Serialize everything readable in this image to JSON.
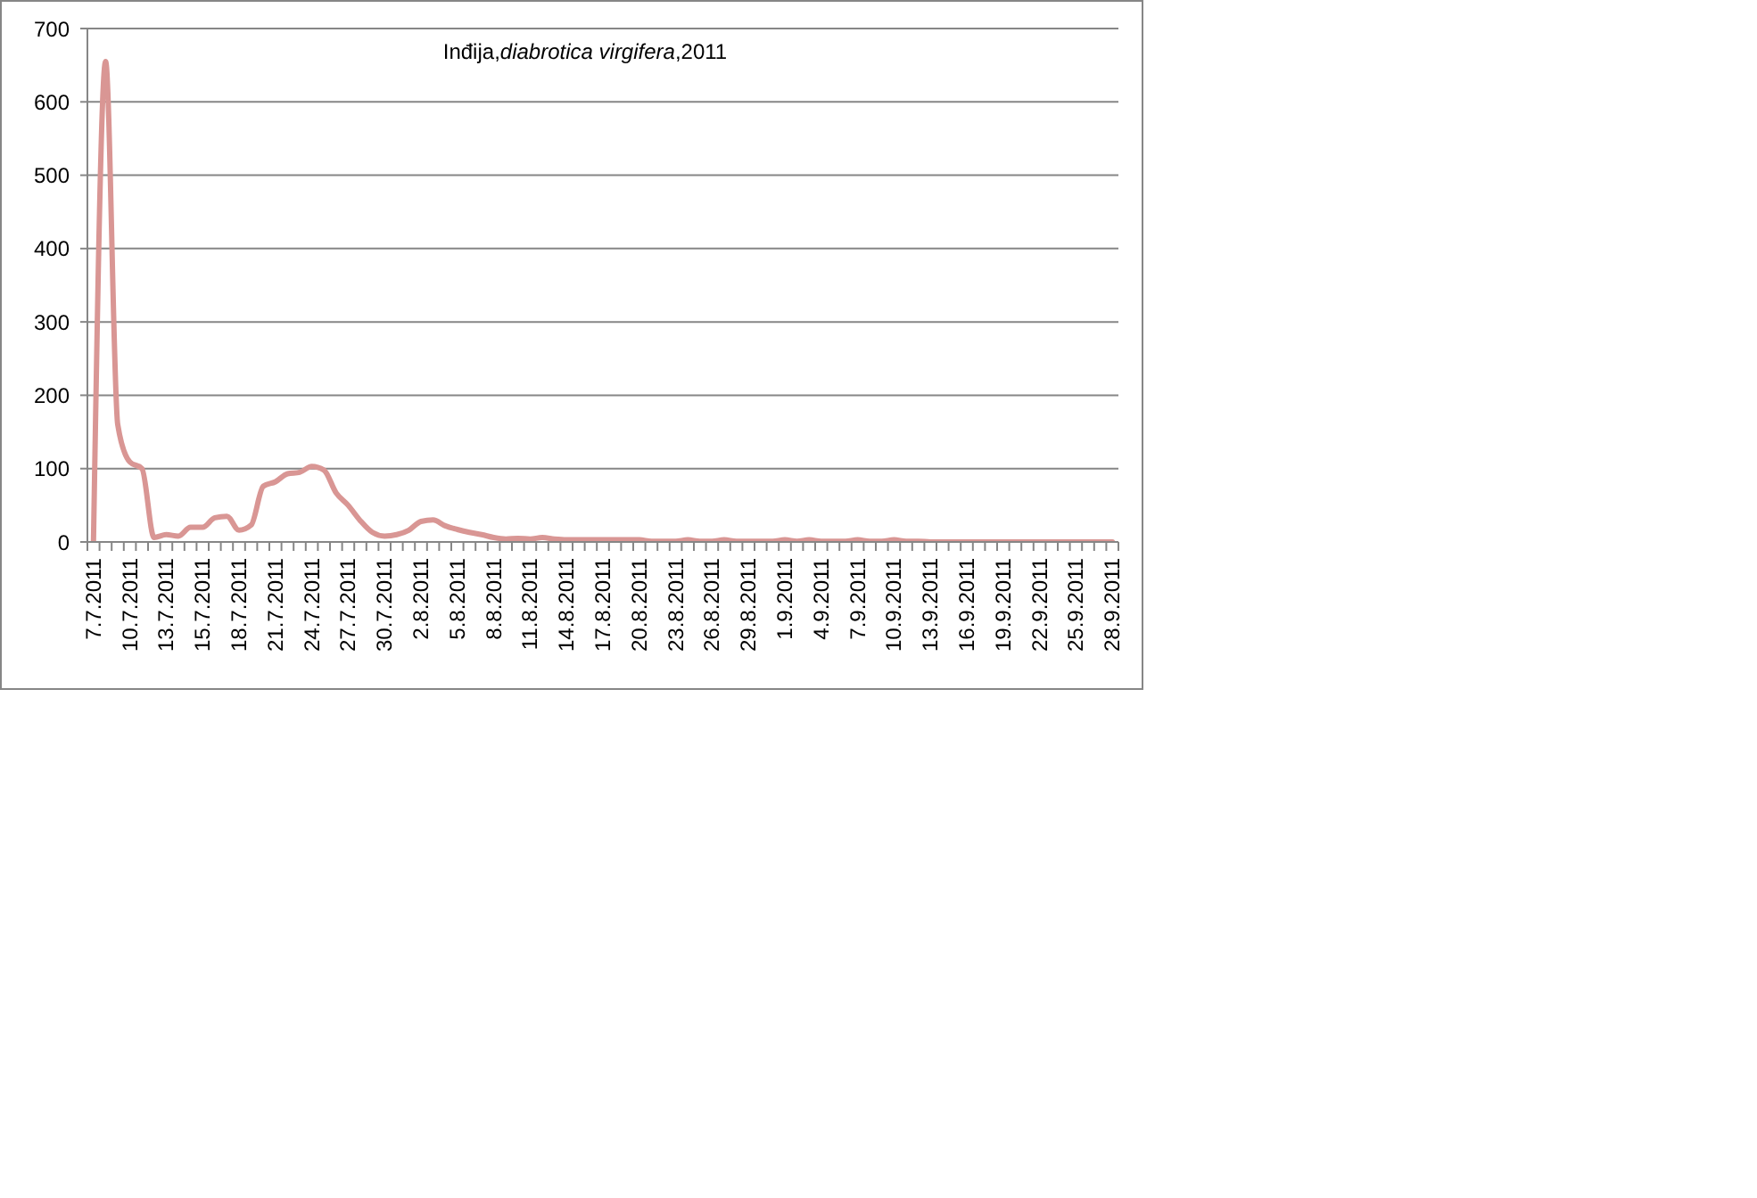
{
  "chart_data": {
    "type": "line",
    "title": "Inđija,diabrotica virgifera,2011",
    "categories": [
      "7.7.2011",
      null,
      null,
      "10.7.2011",
      null,
      null,
      "13.7.2011",
      null,
      null,
      "15.7.2011",
      null,
      null,
      "18.7.2011",
      null,
      null,
      "21.7.2011",
      null,
      null,
      "24.7.2011",
      null,
      null,
      "27.7.2011",
      null,
      null,
      "30.7.2011",
      null,
      null,
      "2.8.2011",
      null,
      null,
      "5.8.2011",
      null,
      null,
      "8.8.2011",
      null,
      null,
      "11.8.2011",
      null,
      null,
      "14.8.2011",
      null,
      null,
      "17.8.2011",
      null,
      null,
      "20.8.2011",
      null,
      null,
      "23.8.2011",
      null,
      null,
      "26.8.2011",
      null,
      null,
      "29.8.2011",
      null,
      null,
      "1.9.2011",
      null,
      null,
      "4.9.2011",
      null,
      null,
      "7.9.2011",
      null,
      null,
      "10.9.2011",
      null,
      null,
      "13.9.2011",
      null,
      null,
      "16.9.2011",
      null,
      null,
      "19.9.2011",
      null,
      null,
      "22.9.2011",
      null,
      null,
      "25.9.2011",
      null,
      null,
      "28.9.2011"
    ],
    "values": [
      0,
      655,
      160,
      109,
      100,
      6,
      10,
      8,
      20,
      20,
      33,
      35,
      16,
      23,
      76,
      82,
      93,
      95,
      103,
      98,
      67,
      50,
      29,
      13,
      8,
      10,
      16,
      28,
      30,
      22,
      17,
      13,
      10,
      6,
      4,
      5,
      4,
      6,
      4,
      3,
      3,
      3,
      3,
      3,
      3,
      3,
      1,
      1,
      1,
      3,
      1,
      1,
      3,
      1,
      1,
      1,
      1,
      3,
      1,
      3,
      1,
      1,
      1,
      3,
      1,
      1,
      3,
      1,
      1,
      0,
      0,
      0,
      0,
      0,
      0,
      0,
      0,
      0,
      0,
      0,
      0,
      0,
      0,
      0,
      0
    ],
    "color": "#d99694",
    "ylim": [
      0,
      700
    ],
    "yticks": [
      0,
      100,
      200,
      300,
      400,
      500,
      600,
      700
    ],
    "grid": "y",
    "marker": "none"
  }
}
